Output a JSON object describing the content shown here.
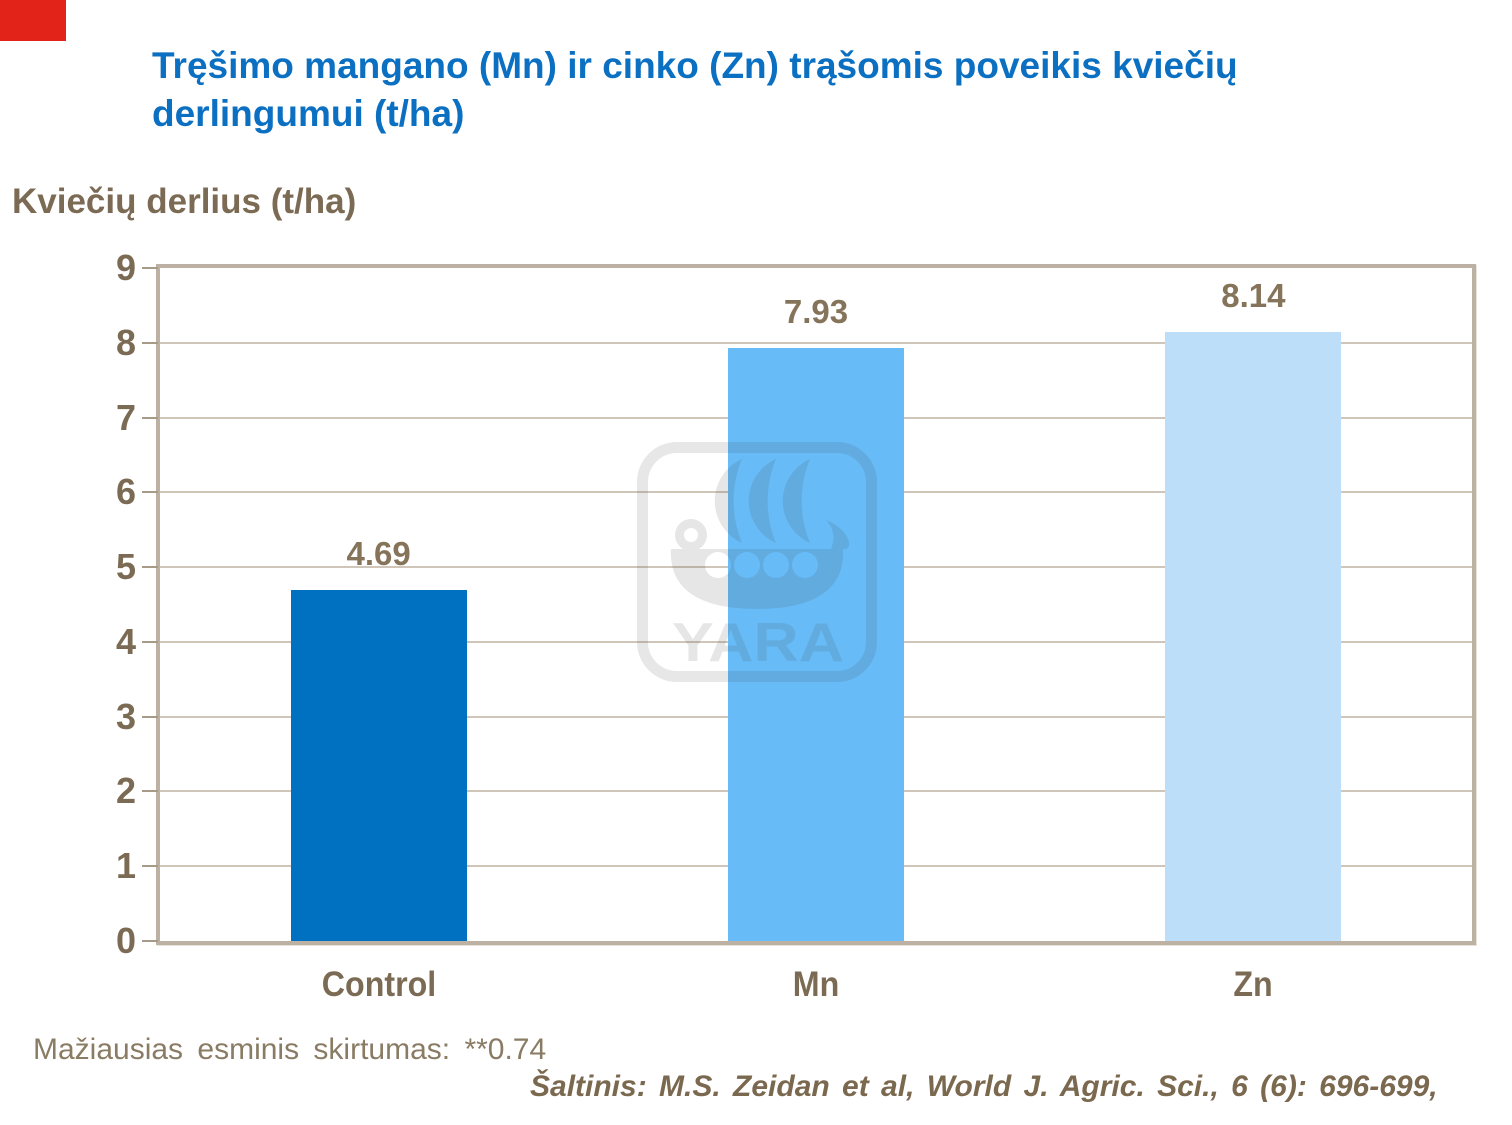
{
  "colors": {
    "flag_red": "#E2231A",
    "title_blue": "#0C70C2",
    "text_brown": "#7C6B54",
    "value_brown": "#85745A",
    "note_brown": "#8A7B64",
    "source_brown": "#7A684F",
    "grid": "#CFC6B9",
    "frame": "#BCB1A2",
    "tick": "#A79A87"
  },
  "brand": {
    "watermark_text": "YARA"
  },
  "header": {
    "title_lines": [
      "Tręšimo mangano (Mn) ir cinko (Zn) trąšomis poveikis kviečių",
      "derlingumui (t/ha)"
    ]
  },
  "chart_data": {
    "type": "bar",
    "title": "Tręšimo mangano (Mn) ir cinko (Zn) trąšomis poveikis kviečių derlingumui (t/ha)",
    "ylabel": "Kviečių derlius (t/ha)",
    "xlabel": "",
    "categories": [
      "Control",
      "Mn",
      "Zn"
    ],
    "values": [
      4.69,
      7.93,
      8.14
    ],
    "bar_colors": [
      "#0070C0",
      "#67BBF7",
      "#BCDEF8"
    ],
    "ylim": [
      0,
      9
    ],
    "ytick_step": 1,
    "grid": true,
    "legend_position": "none",
    "annotations": [
      "Mažiausias esminis skirtumas: **0.74"
    ]
  },
  "footer": {
    "note": "Mažiausias esminis skirtumas: **0.74",
    "source": "Šaltinis: M.S. Zeidan et al, World J. Agric. Sci., 6 (6): 696-699,"
  }
}
